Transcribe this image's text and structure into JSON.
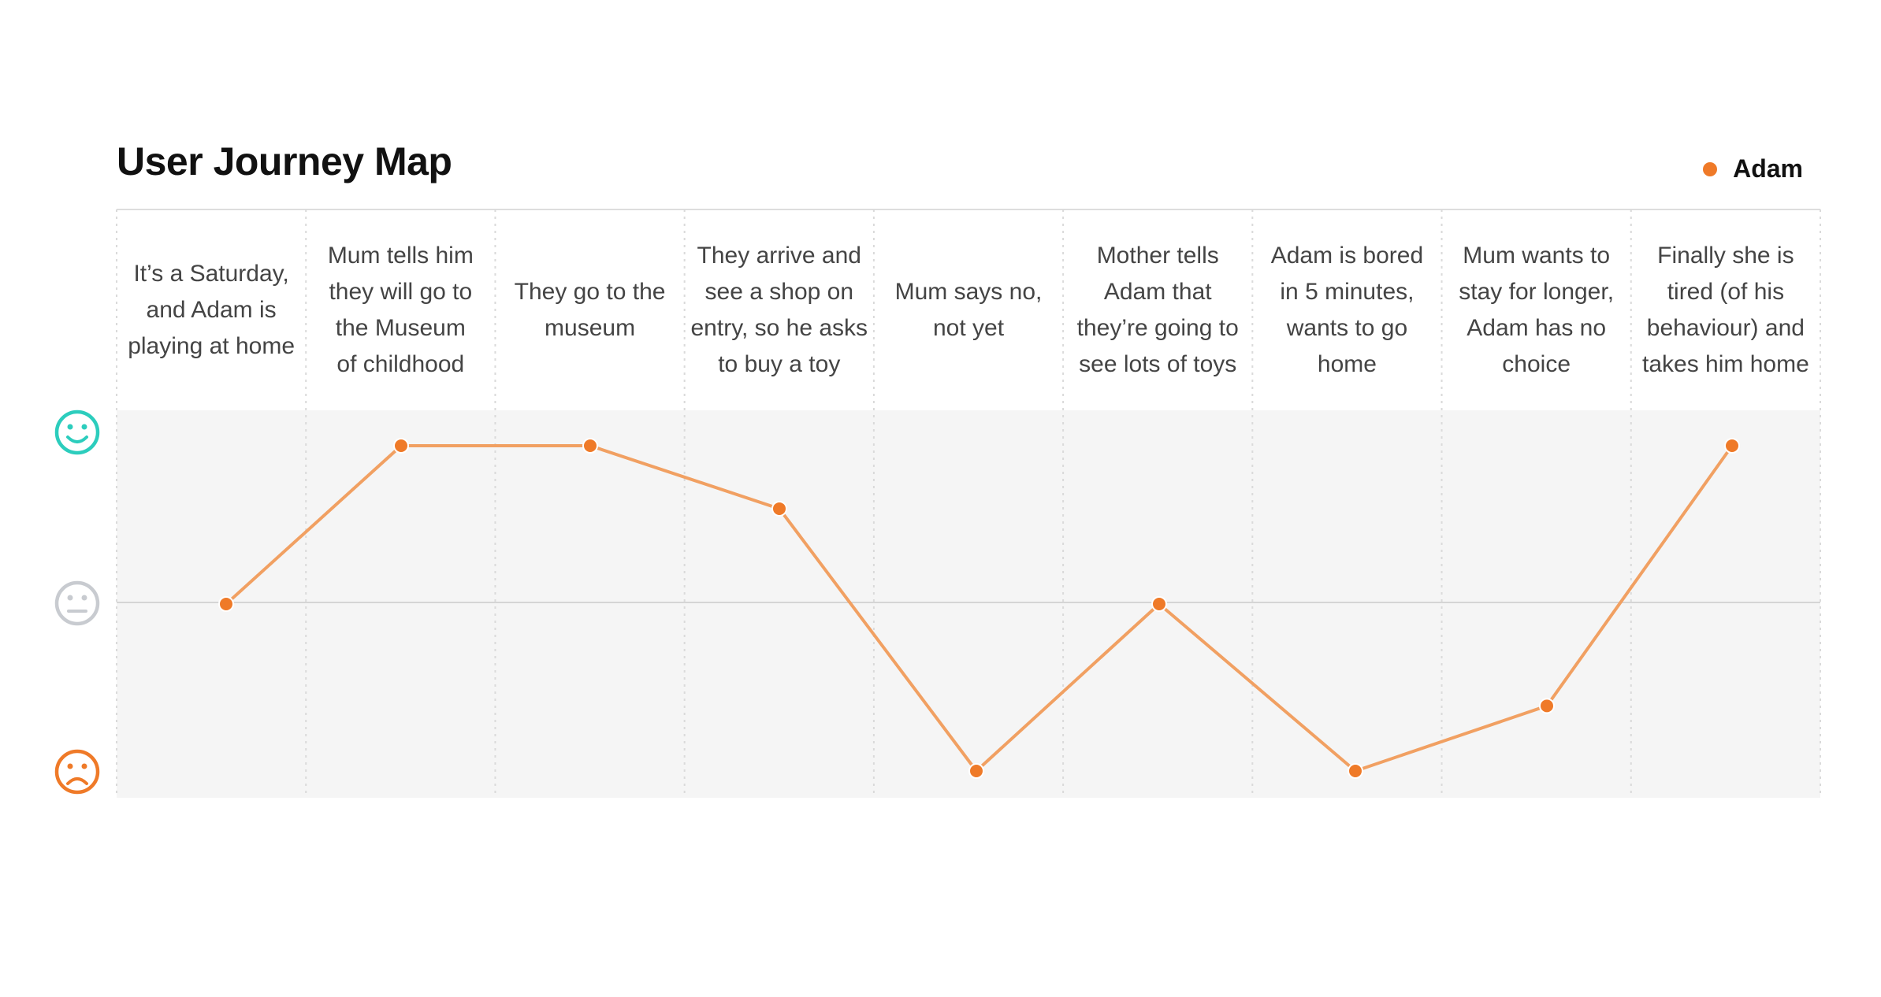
{
  "title": "User Journey Map",
  "legend": {
    "name": "Adam",
    "color": "#EF7A28"
  },
  "icons": {
    "happy": {
      "name": "happy-face-icon",
      "color": "#2CCDBD"
    },
    "neutral": {
      "name": "neutral-face-icon",
      "color": "#C8CBD0"
    },
    "sad": {
      "name": "sad-face-icon",
      "color": "#EF7A28"
    }
  },
  "chart_data": {
    "type": "line",
    "title": "User Journey Map",
    "xlabel": "",
    "ylabel": "",
    "ylim": [
      -1,
      1
    ],
    "grid": true,
    "legend_position": "top-right",
    "categories": [
      "It’s a Saturday, and Adam is playing at home",
      "Mum tells him they will go to the Museum of childhood",
      "They go to the museum",
      "They arrive and see a shop on entry, so he asks to buy a toy",
      "Mum says no, not yet",
      "Mother tells Adam that they’re going to see lots of toys",
      "Adam is bored in 5 minutes, wants to go home",
      "Mum wants to stay for longer, Adam has no choice",
      "Finally she is tired (of his behaviour) and takes him home"
    ],
    "category_lines": [
      [
        "It’s a Saturday,",
        "and Adam is",
        "playing at home"
      ],
      [
        "Mum tells him",
        "they will go to",
        "the Museum",
        "of childhood"
      ],
      [
        "They go to the",
        "museum"
      ],
      [
        "They arrive and",
        "see a shop on",
        "entry, so he asks",
        "to buy a toy"
      ],
      [
        "Mum says no,",
        "not yet"
      ],
      [
        "Mother tells",
        "Adam that",
        "they’re going to",
        "see lots of toys"
      ],
      [
        "Adam is bored",
        "in 5 minutes,",
        "wants to go",
        "home"
      ],
      [
        "Mum wants to",
        "stay for longer,",
        "Adam has no",
        "choice"
      ],
      [
        "Finally she is",
        "tired (of his",
        "behaviour) and",
        "takes him home"
      ]
    ],
    "series": [
      {
        "name": "Adam",
        "color": "#EF7A28",
        "values": [
          0,
          0.93,
          0.93,
          0.56,
          -1.0,
          0,
          -1.0,
          -0.61,
          0.93
        ]
      }
    ]
  }
}
